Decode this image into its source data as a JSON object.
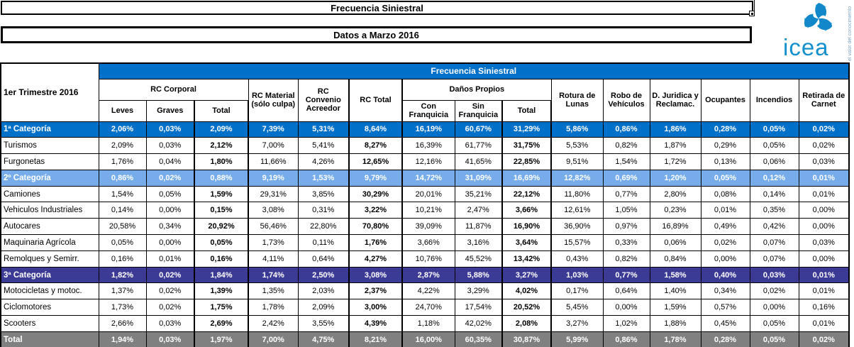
{
  "titles": {
    "main": "Frecuencia Siniestral",
    "sub": "Datos a Marzo 2016"
  },
  "logo": {
    "wordmark": "icea",
    "tagline": "el valor del conocimiento"
  },
  "colors": {
    "header_blue": "#0070c8",
    "cat1_blue": "#0070c8",
    "cat2_light_blue": "#76ace9",
    "cat3_indigo": "#3b3b95",
    "total_gray": "#808080"
  },
  "table": {
    "corner_label": "1er Trimestre 2016",
    "banner": "Frecuencia Siniestral",
    "groups": [
      {
        "label": "RC Corporal",
        "colspan": 3,
        "children": [
          "Leves",
          "Graves",
          "Total"
        ]
      },
      {
        "label": "RC Material (sólo culpa)",
        "colspan": 1
      },
      {
        "label": "RC Convenio Acreedor",
        "colspan": 1
      },
      {
        "label": "RC Total",
        "colspan": 1,
        "emphasis": true
      },
      {
        "label": "Daños Propios",
        "colspan": 3,
        "children": [
          "Con Franquicia",
          "Sin Franquicia",
          "Total"
        ]
      },
      {
        "label": "Rotura de Lunas",
        "colspan": 1
      },
      {
        "label": "Robo de Vehículos",
        "colspan": 1
      },
      {
        "label": "D. Juridica y Reclamac.",
        "colspan": 1
      },
      {
        "label": "Ocupantes",
        "colspan": 1
      },
      {
        "label": "Incendios",
        "colspan": 1
      },
      {
        "label": "Retirada de Carnet",
        "colspan": 1
      }
    ],
    "rows": [
      {
        "label": "1ª Categoría",
        "type": "cat1",
        "values": [
          "2,06%",
          "0,03%",
          "2,09%",
          "7,39%",
          "5,31%",
          "8,64%",
          "16,19%",
          "60,67%",
          "31,29%",
          "5,86%",
          "0,86%",
          "1,86%",
          "0,28%",
          "0,05%",
          "0,02%"
        ]
      },
      {
        "label": "Turismos",
        "type": "data",
        "values": [
          "2,09%",
          "0,03%",
          "2,12%",
          "7,00%",
          "5,41%",
          "8,27%",
          "16,39%",
          "61,77%",
          "31,75%",
          "5,53%",
          "0,82%",
          "1,87%",
          "0,29%",
          "0,05%",
          "0,02%"
        ]
      },
      {
        "label": "Furgonetas",
        "type": "data",
        "values": [
          "1,76%",
          "0,04%",
          "1,80%",
          "11,66%",
          "4,26%",
          "12,65%",
          "12,16%",
          "41,65%",
          "22,85%",
          "9,51%",
          "1,54%",
          "1,72%",
          "0,13%",
          "0,06%",
          "0,03%"
        ]
      },
      {
        "label": "2º Categoría",
        "type": "cat2",
        "values": [
          "0,86%",
          "0,02%",
          "0,88%",
          "9,19%",
          "1,53%",
          "9,79%",
          "14,72%",
          "31,09%",
          "16,69%",
          "12,82%",
          "0,69%",
          "1,20%",
          "0,05%",
          "0,12%",
          "0,01%"
        ]
      },
      {
        "label": "Camiones",
        "type": "data",
        "values": [
          "1,54%",
          "0,05%",
          "1,59%",
          "29,31%",
          "3,85%",
          "30,29%",
          "20,01%",
          "35,21%",
          "22,12%",
          "11,80%",
          "0,77%",
          "2,80%",
          "0,08%",
          "0,14%",
          "0,01%"
        ]
      },
      {
        "label": "Vehiculos Industriales",
        "type": "data",
        "values": [
          "0,14%",
          "0,00%",
          "0,15%",
          "3,08%",
          "0,31%",
          "3,22%",
          "10,21%",
          "2,47%",
          "3,66%",
          "12,61%",
          "1,05%",
          "0,23%",
          "0,01%",
          "0,35%",
          "0,00%"
        ]
      },
      {
        "label": "Autocares",
        "type": "data",
        "values": [
          "20,58%",
          "0,34%",
          "20,92%",
          "56,46%",
          "22,80%",
          "70,80%",
          "39,09%",
          "11,87%",
          "16,90%",
          "36,90%",
          "0,97%",
          "16,89%",
          "0,49%",
          "0,42%",
          "0,00%"
        ]
      },
      {
        "label": "Maquinaria Agrícola",
        "type": "data",
        "values": [
          "0,05%",
          "0,00%",
          "0,05%",
          "1,73%",
          "0,11%",
          "1,76%",
          "3,66%",
          "3,16%",
          "3,64%",
          "15,57%",
          "0,33%",
          "0,06%",
          "0,02%",
          "0,07%",
          "0,03%"
        ]
      },
      {
        "label": "Remolques y Semirr.",
        "type": "data",
        "values": [
          "0,16%",
          "0,01%",
          "0,16%",
          "4,11%",
          "0,64%",
          "4,27%",
          "10,76%",
          "45,52%",
          "13,42%",
          "0,43%",
          "0,82%",
          "0,84%",
          "0,00%",
          "0,07%",
          "0,00%"
        ]
      },
      {
        "label": "3ª Categoría",
        "type": "cat3",
        "values": [
          "1,82%",
          "0,02%",
          "1,84%",
          "1,74%",
          "2,50%",
          "3,08%",
          "2,87%",
          "5,88%",
          "3,27%",
          "1,03%",
          "0,77%",
          "1,58%",
          "0,40%",
          "0,03%",
          "0,01%"
        ]
      },
      {
        "label": "Motocicletas y motoc.",
        "type": "data",
        "values": [
          "1,37%",
          "0,02%",
          "1,39%",
          "1,35%",
          "2,03%",
          "2,37%",
          "4,22%",
          "3,29%",
          "4,02%",
          "0,17%",
          "0,64%",
          "1,40%",
          "0,34%",
          "0,02%",
          "0,01%"
        ]
      },
      {
        "label": "Ciclomotores",
        "type": "data",
        "values": [
          "1,73%",
          "0,02%",
          "1,75%",
          "1,78%",
          "2,09%",
          "3,00%",
          "24,70%",
          "17,54%",
          "20,52%",
          "5,45%",
          "0,00%",
          "1,59%",
          "0,57%",
          "0,00%",
          "0,16%"
        ]
      },
      {
        "label": "Scooters",
        "type": "data",
        "values": [
          "2,66%",
          "0,03%",
          "2,69%",
          "2,42%",
          "3,55%",
          "4,39%",
          "1,18%",
          "42,02%",
          "2,08%",
          "3,27%",
          "1,02%",
          "1,88%",
          "0,45%",
          "0,05%",
          "0,01%"
        ]
      },
      {
        "label": "Total",
        "type": "total",
        "values": [
          "1,94%",
          "0,03%",
          "1,97%",
          "7,00%",
          "4,75%",
          "8,21%",
          "16,00%",
          "60,35%",
          "30,87%",
          "5,99%",
          "0,86%",
          "1,78%",
          "0,28%",
          "0,05%",
          "0,02%"
        ]
      }
    ]
  }
}
